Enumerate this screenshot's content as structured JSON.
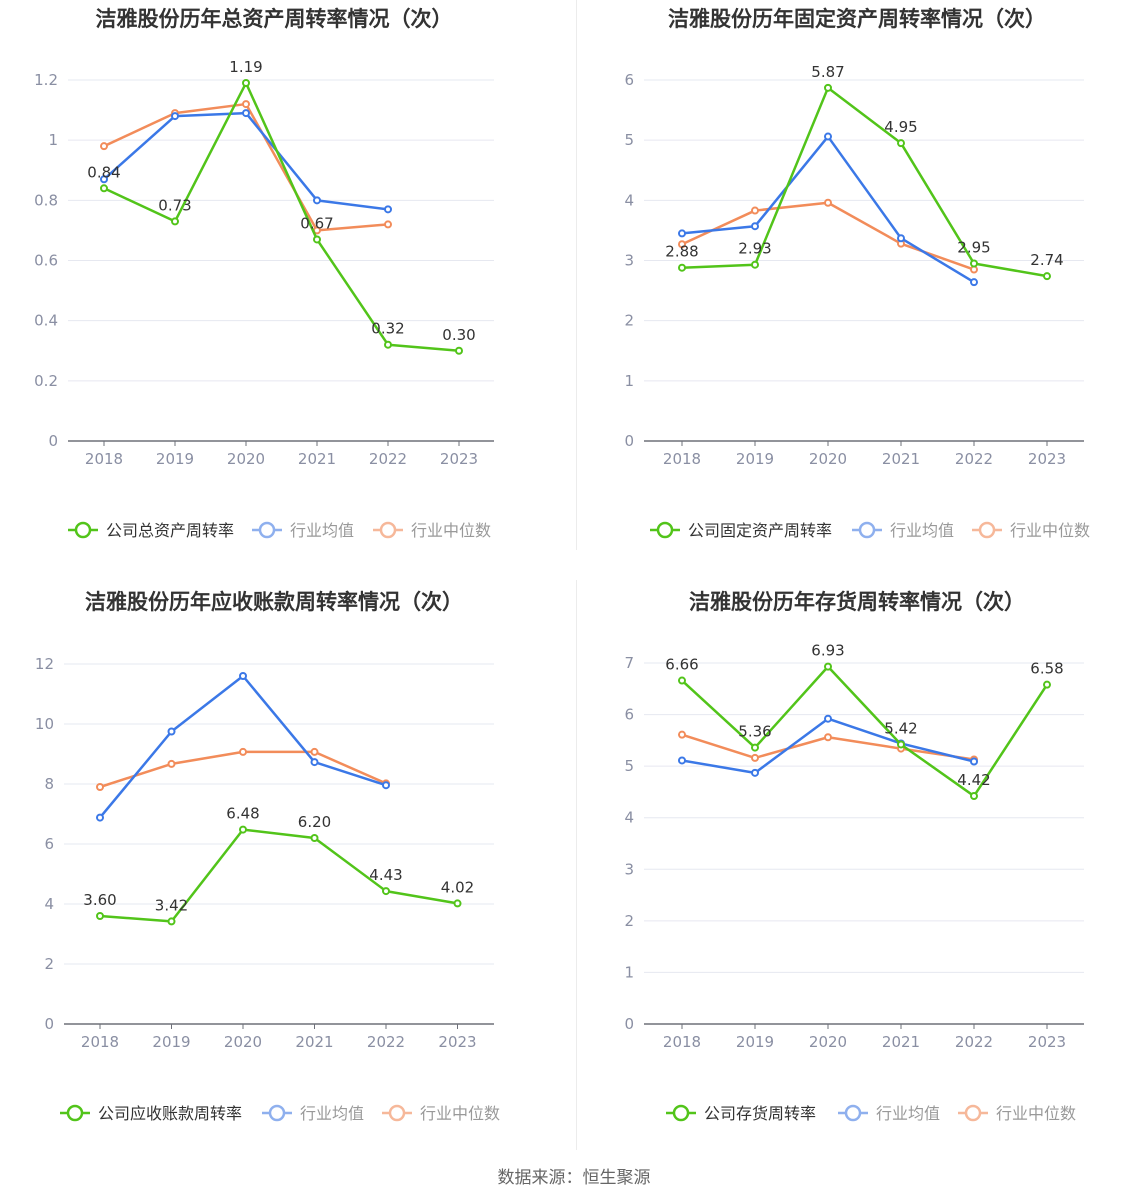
{
  "footer": {
    "source": "数据来源：恒生聚源"
  },
  "colors": {
    "company": "#52c41a",
    "average": "#3b78e7",
    "median": "#f28c5a",
    "grid": "#e6e8f0",
    "axis": "#8a8fa3",
    "title": "#333333"
  },
  "chart_data": [
    {
      "type": "line",
      "title": "洁雅股份历年总资产周转率情况（次）",
      "categories": [
        "2018",
        "2019",
        "2020",
        "2021",
        "2022",
        "2023"
      ],
      "ylim": [
        0,
        1.2
      ],
      "yticks": [
        "0",
        "0.2",
        "0.4",
        "0.6",
        "0.8",
        "1",
        "1.2"
      ],
      "grid": true,
      "legend_position": "bottom",
      "series": [
        {
          "name": "公司总资产周转率",
          "values": [
            0.84,
            0.73,
            1.19,
            0.67,
            0.32,
            0.3
          ],
          "labels": [
            "0.84",
            "0.73",
            "1.19",
            "0.67",
            "0.32",
            "0.30"
          ]
        },
        {
          "name": "行业均值",
          "values": [
            0.87,
            1.08,
            1.09,
            0.8,
            0.77,
            null
          ]
        },
        {
          "name": "行业中位数",
          "values": [
            0.98,
            1.09,
            1.12,
            0.7,
            0.72,
            null
          ]
        }
      ]
    },
    {
      "type": "line",
      "title": "洁雅股份历年固定资产周转率情况（次）",
      "categories": [
        "2018",
        "2019",
        "2020",
        "2021",
        "2022",
        "2023"
      ],
      "ylim": [
        0,
        6
      ],
      "yticks": [
        "0",
        "1",
        "2",
        "3",
        "4",
        "5",
        "6"
      ],
      "grid": true,
      "legend_position": "bottom",
      "series": [
        {
          "name": "公司固定资产周转率",
          "values": [
            2.88,
            2.93,
            5.87,
            4.95,
            2.95,
            2.74
          ],
          "labels": [
            "2.88",
            "2.93",
            "5.87",
            "4.95",
            "2.95",
            "2.74"
          ]
        },
        {
          "name": "行业均值",
          "values": [
            3.45,
            3.57,
            5.06,
            3.37,
            2.64,
            null
          ]
        },
        {
          "name": "行业中位数",
          "values": [
            3.27,
            3.83,
            3.96,
            3.28,
            2.85,
            null
          ]
        }
      ]
    },
    {
      "type": "line",
      "title": "洁雅股份历年应收账款周转率情况（次）",
      "categories": [
        "2018",
        "2019",
        "2020",
        "2021",
        "2022",
        "2023"
      ],
      "ylim": [
        0,
        12
      ],
      "yticks": [
        "0",
        "2",
        "4",
        "6",
        "8",
        "10",
        "12"
      ],
      "grid": true,
      "legend_position": "bottom",
      "series": [
        {
          "name": "公司应收账款周转率",
          "values": [
            3.6,
            3.42,
            6.48,
            6.2,
            4.43,
            4.02
          ],
          "labels": [
            "3.60",
            "3.42",
            "6.48",
            "6.20",
            "4.43",
            "4.02"
          ]
        },
        {
          "name": "行业均值",
          "values": [
            6.88,
            9.75,
            11.6,
            8.73,
            7.96,
            null
          ]
        },
        {
          "name": "行业中位数",
          "values": [
            7.9,
            8.67,
            9.07,
            9.07,
            8.02,
            null
          ]
        }
      ]
    },
    {
      "type": "line",
      "title": "洁雅股份历年存货周转率情况（次）",
      "categories": [
        "2018",
        "2019",
        "2020",
        "2021",
        "2022",
        "2023"
      ],
      "ylim": [
        0,
        7
      ],
      "yticks": [
        "0",
        "1",
        "2",
        "3",
        "4",
        "5",
        "6",
        "7"
      ],
      "grid": true,
      "legend_position": "bottom",
      "series": [
        {
          "name": "公司存货周转率",
          "values": [
            6.66,
            5.36,
            6.93,
            5.42,
            4.42,
            6.58
          ],
          "labels": [
            "6.66",
            "5.36",
            "6.93",
            "5.42",
            "4.42",
            "6.58"
          ]
        },
        {
          "name": "行业均值",
          "values": [
            5.11,
            4.87,
            5.92,
            5.44,
            5.09,
            null
          ]
        },
        {
          "name": "行业中位数",
          "values": [
            5.61,
            5.16,
            5.56,
            5.34,
            5.13,
            null
          ]
        }
      ]
    }
  ]
}
